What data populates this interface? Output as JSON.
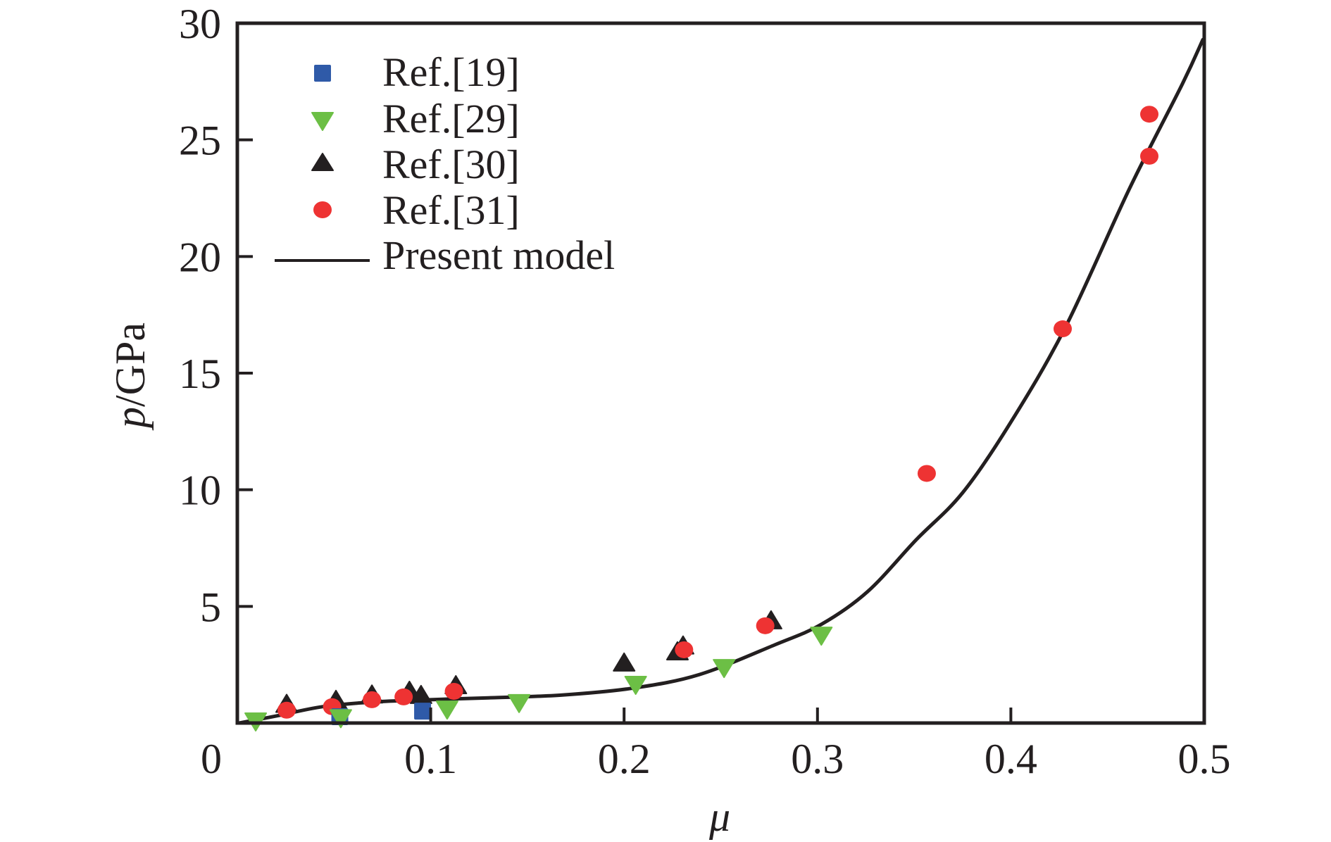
{
  "chart_data": {
    "type": "scatter",
    "title": "",
    "xlabel": "μ",
    "ylabel_var": "p",
    "ylabel_unit": "/GPa",
    "xlim": [
      0,
      0.5
    ],
    "ylim": [
      0,
      30
    ],
    "xticks": [
      0,
      0.1,
      0.2,
      0.3,
      0.4,
      0.5
    ],
    "xtick_labels": [
      "0",
      "0.1",
      "0.2",
      "0.3",
      "0.4",
      "0.5"
    ],
    "yticks": [
      5,
      10,
      15,
      20,
      25,
      30
    ],
    "ytick_labels": [
      "5",
      "10",
      "15",
      "20",
      "25",
      "30"
    ],
    "grid": false,
    "legend_position": "top-left",
    "series": [
      {
        "name": "Ref.[19]",
        "marker": "square",
        "color": "#2f5aa8",
        "points": [
          [
            0.053,
            0.27
          ],
          [
            0.0958,
            0.51
          ]
        ]
      },
      {
        "name": "Ref.[29]",
        "marker": "triangle-down",
        "color": "#6cbf45",
        "points": [
          [
            0.0095,
            0.06
          ],
          [
            0.0535,
            0.2
          ],
          [
            0.1085,
            0.57
          ],
          [
            0.1457,
            0.85
          ],
          [
            0.206,
            1.63
          ],
          [
            0.2517,
            2.35
          ],
          [
            0.302,
            3.74
          ]
        ]
      },
      {
        "name": "Ref.[30]",
        "marker": "triangle-up",
        "color": "#231f20",
        "points": [
          [
            0.0255,
            0.8
          ],
          [
            0.051,
            0.97
          ],
          [
            0.0696,
            1.2
          ],
          [
            0.089,
            1.36
          ],
          [
            0.095,
            1.18
          ],
          [
            0.113,
            1.6
          ],
          [
            0.2,
            2.57
          ],
          [
            0.2276,
            3.05
          ],
          [
            0.2305,
            3.3
          ],
          [
            0.276,
            4.38
          ]
        ]
      },
      {
        "name": "Ref.[31]",
        "marker": "circle",
        "color": "#ee3333",
        "points": [
          [
            0.0255,
            0.55
          ],
          [
            0.049,
            0.7
          ],
          [
            0.0696,
            1.0
          ],
          [
            0.086,
            1.12
          ],
          [
            0.112,
            1.36
          ],
          [
            0.231,
            3.14
          ],
          [
            0.273,
            4.17
          ],
          [
            0.3565,
            10.7
          ],
          [
            0.4268,
            16.9
          ],
          [
            0.4716,
            24.3
          ],
          [
            0.4716,
            26.1
          ]
        ]
      },
      {
        "name": "Present model",
        "marker": "line",
        "color": "#231f20",
        "points": [
          [
            0.001,
            0.0
          ],
          [
            0.02,
            0.3
          ],
          [
            0.044,
            0.7
          ],
          [
            0.07,
            0.9
          ],
          [
            0.0998,
            1.0
          ],
          [
            0.13,
            1.08
          ],
          [
            0.168,
            1.2
          ],
          [
            0.205,
            1.5
          ],
          [
            0.239,
            2.08
          ],
          [
            0.2779,
            3.35
          ],
          [
            0.302,
            4.23
          ],
          [
            0.326,
            5.64
          ],
          [
            0.351,
            7.85
          ],
          [
            0.375,
            9.87
          ],
          [
            0.4,
            12.9
          ],
          [
            0.4284,
            17.0
          ],
          [
            0.4613,
            22.9
          ],
          [
            0.4887,
            27.4
          ],
          [
            0.4993,
            29.3
          ]
        ]
      }
    ]
  }
}
